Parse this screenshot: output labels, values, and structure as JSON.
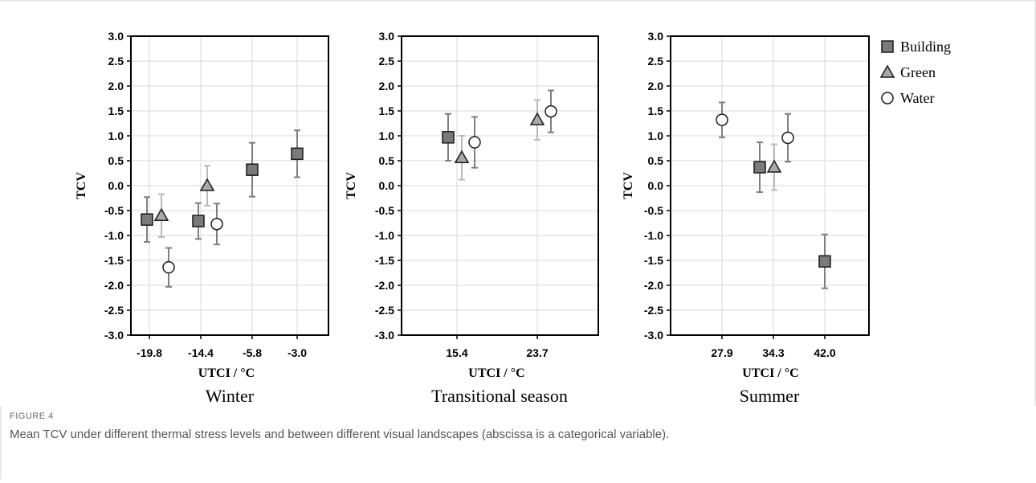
{
  "chart_data": [
    {
      "type": "scatter",
      "title": "Winter",
      "xlabel": "UTCI / °C",
      "ylabel": "TCV",
      "ylim": [
        -3.0,
        3.0
      ],
      "yticks": [
        "3.0",
        "2.5",
        "2.0",
        "1.5",
        "1.0",
        "0.5",
        "0.0",
        "-0.5",
        "-1.0",
        "-1.5",
        "-2.0",
        "-2.5",
        "-3.0"
      ],
      "categories": [
        "-19.8",
        "-14.4",
        "-5.8",
        "-3.0"
      ],
      "grid": "on",
      "series": [
        {
          "name": "Building",
          "points": [
            {
              "category": "-19.8",
              "y": -0.68,
              "err": 0.45
            },
            {
              "category": "-14.4",
              "y": -0.71,
              "err": 0.36
            },
            {
              "category": "-5.8",
              "y": 0.32,
              "err": 0.54
            },
            {
              "category": "-3.0",
              "y": 0.64,
              "err": 0.47
            }
          ]
        },
        {
          "name": "Green",
          "points": [
            {
              "category": "-19.8",
              "y": -0.6,
              "err": 0.43
            },
            {
              "category": "-14.4",
              "y": 0.0,
              "err": 0.4
            }
          ]
        },
        {
          "name": "Water",
          "points": [
            {
              "category": "-19.8",
              "y": -1.64,
              "err": 0.39
            },
            {
              "category": "-14.4",
              "y": -0.77,
              "err": 0.41
            }
          ]
        }
      ]
    },
    {
      "type": "scatter",
      "title": "Transitional season",
      "xlabel": "UTCI / °C",
      "ylabel": "TCV",
      "ylim": [
        -3.0,
        3.0
      ],
      "yticks": [
        "3.0",
        "2.5",
        "2.0",
        "1.5",
        "1.0",
        "0.5",
        "0.0",
        "-0.5",
        "-1.0",
        "-1.5",
        "-2.0",
        "-2.5",
        "-3.0"
      ],
      "categories": [
        "15.4",
        "23.7"
      ],
      "grid": "on",
      "series": [
        {
          "name": "Building",
          "points": [
            {
              "category": "15.4",
              "y": 0.97,
              "err": 0.47
            }
          ]
        },
        {
          "name": "Green",
          "points": [
            {
              "category": "15.4",
              "y": 0.56,
              "err": 0.44
            },
            {
              "category": "23.7",
              "y": 1.32,
              "err": 0.4
            }
          ]
        },
        {
          "name": "Water",
          "points": [
            {
              "category": "15.4",
              "y": 0.87,
              "err": 0.51
            },
            {
              "category": "23.7",
              "y": 1.49,
              "err": 0.42
            }
          ]
        }
      ]
    },
    {
      "type": "scatter",
      "title": "Summer",
      "xlabel": "UTCI / °C",
      "ylabel": "TCV",
      "ylim": [
        -3.0,
        3.0
      ],
      "yticks": [
        "3.0",
        "2.5",
        "2.0",
        "1.5",
        "1.0",
        "0.5",
        "0.0",
        "-0.5",
        "-1.0",
        "-1.5",
        "-2.0",
        "-2.5",
        "-3.0"
      ],
      "categories": [
        "27.9",
        "34.3",
        "42.0"
      ],
      "grid": "on",
      "series": [
        {
          "name": "Building",
          "points": [
            {
              "category": "34.3",
              "y": 0.37,
              "err": 0.5
            },
            {
              "category": "42.0",
              "y": -1.52,
              "err": 0.54
            }
          ]
        },
        {
          "name": "Green",
          "points": [
            {
              "category": "34.3",
              "y": 0.37,
              "err": 0.46
            }
          ]
        },
        {
          "name": "Water",
          "points": [
            {
              "category": "27.9",
              "y": 1.32,
              "err": 0.35
            },
            {
              "category": "34.3",
              "y": 0.96,
              "err": 0.48
            }
          ]
        }
      ]
    }
  ],
  "legend": {
    "placement": "right",
    "items": [
      {
        "name": "Building",
        "marker": "square"
      },
      {
        "name": "Green",
        "marker": "triangle"
      },
      {
        "name": "Water",
        "marker": "circle"
      }
    ]
  },
  "colors": {
    "building_fill": "#7a7a7a",
    "green_fill": "#a9a9a9",
    "water_fill": "#ffffff",
    "marker_stroke": "#1a1a1a",
    "errorbar_dark": "#7f7f7f",
    "errorbar_light": "#b9b9b9",
    "grid": "#d9d9d9",
    "axis": "#000000"
  },
  "caption": {
    "label": "FIGURE 4",
    "text": "Mean TCV under different thermal stress levels and between different visual landscapes (abscissa is a categorical variable)."
  }
}
